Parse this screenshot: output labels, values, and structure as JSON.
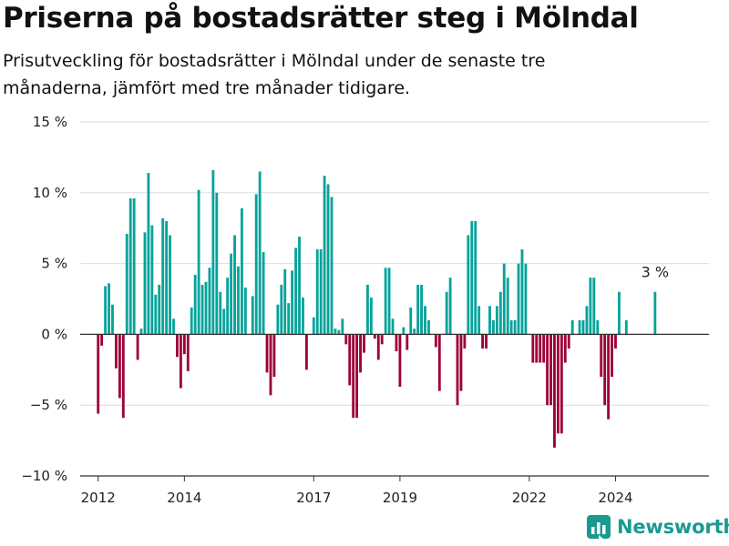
{
  "header": {
    "title": "Priserna på bostadsrätter steg i Mölndal",
    "subtitle": "Prisutveckling för bostadsrätter i Mölndal under de senaste tre månaderna, jämfört med tre månader tidigare."
  },
  "brand": {
    "name": "Newsworthy",
    "icon": "newsworthy-logo-icon"
  },
  "colors": {
    "positive": "#05a39a",
    "negative": "#9d0038",
    "grid": "#dddddd",
    "axis": "#333333"
  },
  "chart_data": {
    "type": "bar",
    "ylim": [
      -10,
      15
    ],
    "yticks": [
      -10,
      -5,
      0,
      5,
      10,
      15
    ],
    "ytick_labels": [
      "−10 %",
      "−5 %",
      "0 %",
      "5 %",
      "10 %",
      "15 %"
    ],
    "xlim": [
      "2011-08",
      "2026-03"
    ],
    "xticks": [
      "2012-01",
      "2014-01",
      "2017-01",
      "2019-01",
      "2022-01",
      "2024-01"
    ],
    "xtick_labels": [
      "2012",
      "2014",
      "2017",
      "2019",
      "2022",
      "2024"
    ],
    "annotation": {
      "text": "3 %",
      "month": "2024-12"
    },
    "series": [
      {
        "values": [
          [
            "2012-01",
            -5.6
          ],
          [
            "2012-02",
            -0.8
          ],
          [
            "2012-03",
            3.4
          ],
          [
            "2012-04",
            3.6
          ],
          [
            "2012-05",
            2.1
          ],
          [
            "2012-06",
            -2.4
          ],
          [
            "2012-07",
            -4.5
          ],
          [
            "2012-08",
            -5.9
          ],
          [
            "2012-09",
            7.1
          ],
          [
            "2012-10",
            9.6
          ],
          [
            "2012-11",
            9.6
          ],
          [
            "2012-12",
            -1.8
          ],
          [
            "2013-01",
            0.4
          ],
          [
            "2013-02",
            7.2
          ],
          [
            "2013-03",
            11.4
          ],
          [
            "2013-04",
            7.7
          ],
          [
            "2013-05",
            2.8
          ],
          [
            "2013-06",
            3.5
          ],
          [
            "2013-07",
            8.2
          ],
          [
            "2013-08",
            8.0
          ],
          [
            "2013-09",
            7.0
          ],
          [
            "2013-10",
            1.1
          ],
          [
            "2013-11",
            -1.6
          ],
          [
            "2013-12",
            -3.8
          ],
          [
            "2014-01",
            -1.4
          ],
          [
            "2014-02",
            -2.6
          ],
          [
            "2014-03",
            1.9
          ],
          [
            "2014-04",
            4.2
          ],
          [
            "2014-05",
            10.2
          ],
          [
            "2014-06",
            3.5
          ],
          [
            "2014-07",
            3.7
          ],
          [
            "2014-08",
            4.7
          ],
          [
            "2014-09",
            11.6
          ],
          [
            "2014-10",
            10.0
          ],
          [
            "2014-11",
            3.0
          ],
          [
            "2014-12",
            1.8
          ],
          [
            "2015-01",
            4.0
          ],
          [
            "2015-02",
            5.7
          ],
          [
            "2015-03",
            7.0
          ],
          [
            "2015-04",
            4.8
          ],
          [
            "2015-05",
            8.9
          ],
          [
            "2015-06",
            3.3
          ],
          [
            "2015-07",
            -0.0
          ],
          [
            "2015-08",
            2.7
          ],
          [
            "2015-09",
            9.9
          ],
          [
            "2015-10",
            11.5
          ],
          [
            "2015-11",
            5.8
          ],
          [
            "2015-12",
            -2.7
          ],
          [
            "2016-01",
            -4.3
          ],
          [
            "2016-02",
            -3.0
          ],
          [
            "2016-03",
            2.1
          ],
          [
            "2016-04",
            3.5
          ],
          [
            "2016-05",
            4.6
          ],
          [
            "2016-06",
            2.2
          ],
          [
            "2016-07",
            4.5
          ],
          [
            "2016-08",
            6.1
          ],
          [
            "2016-09",
            6.9
          ],
          [
            "2016-10",
            2.6
          ],
          [
            "2016-11",
            -2.5
          ],
          [
            "2016-12",
            0.0
          ],
          [
            "2017-01",
            1.2
          ],
          [
            "2017-02",
            6.0
          ],
          [
            "2017-03",
            6.0
          ],
          [
            "2017-04",
            11.2
          ],
          [
            "2017-05",
            10.6
          ],
          [
            "2017-06",
            9.7
          ],
          [
            "2017-07",
            0.4
          ],
          [
            "2017-08",
            0.3
          ],
          [
            "2017-09",
            1.1
          ],
          [
            "2017-10",
            -0.7
          ],
          [
            "2017-11",
            -3.6
          ],
          [
            "2017-12",
            -5.9
          ],
          [
            "2018-01",
            -5.9
          ],
          [
            "2018-02",
            -2.7
          ],
          [
            "2018-03",
            -1.3
          ],
          [
            "2018-04",
            3.5
          ],
          [
            "2018-05",
            2.6
          ],
          [
            "2018-06",
            -0.3
          ],
          [
            "2018-07",
            -1.8
          ],
          [
            "2018-08",
            -0.7
          ],
          [
            "2018-09",
            4.7
          ],
          [
            "2018-10",
            4.7
          ],
          [
            "2018-11",
            1.1
          ],
          [
            "2018-12",
            -1.2
          ],
          [
            "2019-01",
            -3.7
          ],
          [
            "2019-02",
            0.5
          ],
          [
            "2019-03",
            -1.1
          ],
          [
            "2019-04",
            1.9
          ],
          [
            "2019-05",
            0.4
          ],
          [
            "2019-06",
            3.5
          ],
          [
            "2019-07",
            3.5
          ],
          [
            "2019-08",
            2.0
          ],
          [
            "2019-09",
            1.0
          ],
          [
            "2019-10",
            0.0
          ],
          [
            "2019-11",
            -0.9
          ],
          [
            "2019-12",
            -4.0
          ],
          [
            "2020-01",
            0.0
          ],
          [
            "2020-02",
            3.0
          ],
          [
            "2020-03",
            4.0
          ],
          [
            "2020-04",
            0.0
          ],
          [
            "2020-05",
            -5.0
          ],
          [
            "2020-06",
            -4.0
          ],
          [
            "2020-07",
            -1.0
          ],
          [
            "2020-08",
            7.0
          ],
          [
            "2020-09",
            8.0
          ],
          [
            "2020-10",
            8.0
          ],
          [
            "2020-11",
            2.0
          ],
          [
            "2020-12",
            -1.0
          ],
          [
            "2021-01",
            -1.0
          ],
          [
            "2021-02",
            2.0
          ],
          [
            "2021-03",
            1.0
          ],
          [
            "2021-04",
            2.0
          ],
          [
            "2021-05",
            3.0
          ],
          [
            "2021-06",
            5.0
          ],
          [
            "2021-07",
            4.0
          ],
          [
            "2021-08",
            1.0
          ],
          [
            "2021-09",
            1.0
          ],
          [
            "2021-10",
            5.0
          ],
          [
            "2021-11",
            6.0
          ],
          [
            "2021-12",
            5.0
          ],
          [
            "2022-01",
            0.0
          ],
          [
            "2022-02",
            -2.0
          ],
          [
            "2022-03",
            -2.0
          ],
          [
            "2022-04",
            -2.0
          ],
          [
            "2022-05",
            -2.0
          ],
          [
            "2022-06",
            -5.0
          ],
          [
            "2022-07",
            -5.0
          ],
          [
            "2022-08",
            -8.0
          ],
          [
            "2022-09",
            -7.0
          ],
          [
            "2022-10",
            -7.0
          ],
          [
            "2022-11",
            -2.0
          ],
          [
            "2022-12",
            -1.0
          ],
          [
            "2023-01",
            1.0
          ],
          [
            "2023-02",
            0.0
          ],
          [
            "2023-03",
            1.0
          ],
          [
            "2023-04",
            1.0
          ],
          [
            "2023-05",
            2.0
          ],
          [
            "2023-06",
            4.0
          ],
          [
            "2023-07",
            4.0
          ],
          [
            "2023-08",
            1.0
          ],
          [
            "2023-09",
            -3.0
          ],
          [
            "2023-10",
            -5.0
          ],
          [
            "2023-11",
            -6.0
          ],
          [
            "2023-12",
            -3.0
          ],
          [
            "2024-01",
            -1.0
          ],
          [
            "2024-02",
            3.0
          ],
          [
            "2024-03",
            0.0
          ],
          [
            "2024-04",
            1.0
          ],
          [
            "2024-05",
            0.0
          ],
          [
            "2024-06",
            0.0
          ],
          [
            "2024-07",
            0.0
          ],
          [
            "2024-08",
            0.0
          ],
          [
            "2024-09",
            0.0
          ],
          [
            "2024-10",
            0.0
          ],
          [
            "2024-11",
            0.0
          ],
          [
            "2024-12",
            3.0
          ]
        ]
      }
    ]
  }
}
